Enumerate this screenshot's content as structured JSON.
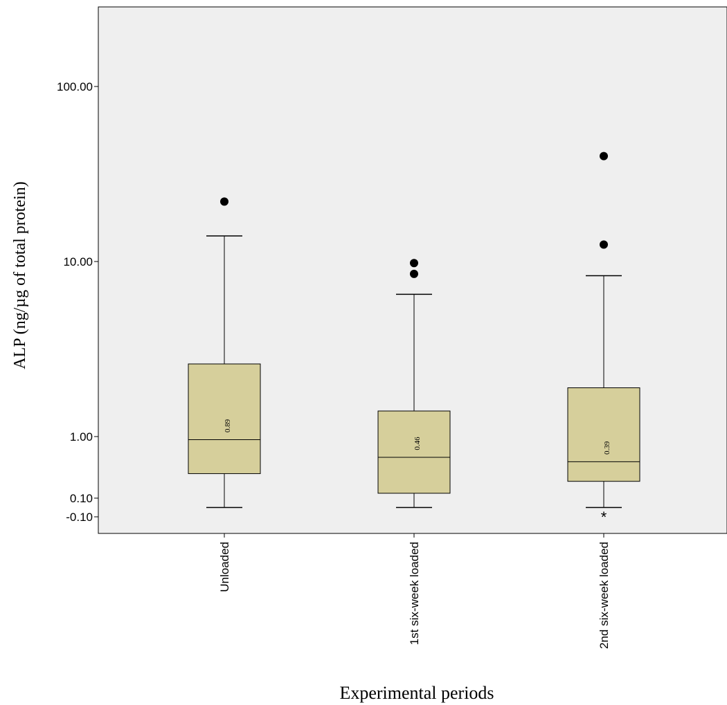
{
  "chart_data": {
    "type": "boxplot",
    "title": "",
    "xlabel": "Experimental periods",
    "ylabel": "ALP (ng/µg of total protein)",
    "y_ticks": [
      "100.00",
      "10.00",
      "1.00",
      "0.10",
      "-0.10"
    ],
    "categories": [
      "Unloaded",
      "1st six-week loaded",
      "2nd six-week loaded"
    ],
    "boxes": [
      {
        "category": "Unloaded",
        "whisker_low": -0.05,
        "q1": 0.25,
        "median": 0.89,
        "q3": 2.6,
        "whisker_high": 14.0,
        "median_label": "0.89",
        "outliers": [
          22.0
        ],
        "extremes": []
      },
      {
        "category": "1st six-week loaded",
        "whisker_low": -0.05,
        "q1": 0.12,
        "median": 0.46,
        "q3": 1.4,
        "whisker_high": 6.5,
        "median_label": "0.46",
        "outliers": [
          9.8,
          8.5
        ],
        "extremes": []
      },
      {
        "category": "2nd six-week loaded",
        "whisker_low": -0.05,
        "q1": 0.09,
        "median": 0.39,
        "q3": 1.9,
        "whisker_high": 8.3,
        "median_label": "0.39",
        "outliers": [
          40.0,
          12.5
        ],
        "extremes": [
          -0.1
        ]
      }
    ],
    "colors": {
      "box_fill": "#d6cf9b",
      "plot_bg": "#efefef",
      "line": "#000000"
    },
    "grid": false,
    "legend": "none"
  }
}
